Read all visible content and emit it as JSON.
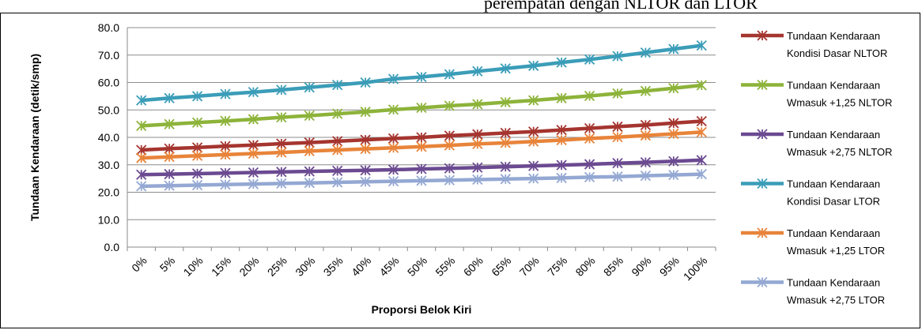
{
  "header_text": "perempatan dengan NLTOR dan LTOR",
  "chart_data": {
    "type": "line",
    "title": "",
    "xlabel": "Proporsi Belok Kiri",
    "ylabel": "Tundaan Kendaraan (detik/smp)",
    "ylim": [
      0,
      80
    ],
    "yticks": [
      "0.0",
      "10.0",
      "20.0",
      "30.0",
      "40.0",
      "50.0",
      "60.0",
      "70.0",
      "80.0"
    ],
    "grid": true,
    "legend_position": "right",
    "categories": [
      "0%",
      "5%",
      "10%",
      "15%",
      "20%",
      "25%",
      "30%",
      "35%",
      "40%",
      "45%",
      "50%",
      "55%",
      "60%",
      "65%",
      "70%",
      "75%",
      "80%",
      "85%",
      "90%",
      "95%",
      "100%"
    ],
    "series": [
      {
        "name_lines": [
          "Tundaan Kendaraan",
          "Kondisi Dasar NLTOR"
        ],
        "color": "#A5352F",
        "values": [
          35.4,
          35.9,
          36.3,
          36.8,
          37.2,
          37.7,
          38.1,
          38.6,
          39.1,
          39.6,
          40.0,
          40.6,
          41.1,
          41.6,
          42.1,
          42.7,
          43.3,
          43.9,
          44.5,
          45.2,
          45.9
        ]
      },
      {
        "name_lines": [
          "Tundaan Kendaraan",
          "Wmasuk +1,25 NLTOR"
        ],
        "color": "#8DB33A",
        "values": [
          44.2,
          44.8,
          45.4,
          46.0,
          46.6,
          47.3,
          47.9,
          48.6,
          49.3,
          50.1,
          50.8,
          51.5,
          52.1,
          52.8,
          53.5,
          54.3,
          55.1,
          56.0,
          56.9,
          57.9,
          59.0
        ]
      },
      {
        "name_lines": [
          "Tundaan Kendaraan",
          "Wmasuk +2,75 NLTOR"
        ],
        "color": "#6B4A91",
        "values": [
          26.4,
          26.6,
          26.8,
          27.0,
          27.2,
          27.4,
          27.6,
          27.8,
          28.0,
          28.2,
          28.5,
          28.7,
          29.0,
          29.3,
          29.6,
          29.9,
          30.2,
          30.6,
          30.9,
          31.3,
          31.7
        ]
      },
      {
        "name_lines": [
          "Tundaan Kendaraan",
          "Kondisi Dasar LTOR"
        ],
        "color": "#3B9DB8",
        "values": [
          53.5,
          54.3,
          55.0,
          55.8,
          56.5,
          57.3,
          58.2,
          59.1,
          60.0,
          61.3,
          62.0,
          63.0,
          64.1,
          65.1,
          66.1,
          67.3,
          68.4,
          69.6,
          70.9,
          72.2,
          73.5
        ]
      },
      {
        "name_lines": [
          "Tundaan Kendaraan",
          "Wmasuk +1,25 LTOR"
        ],
        "color": "#E8843A",
        "values": [
          32.5,
          32.9,
          33.3,
          33.7,
          34.1,
          34.5,
          35.0,
          35.4,
          35.8,
          36.2,
          36.6,
          37.1,
          37.6,
          38.0,
          38.5,
          39.0,
          39.6,
          40.1,
          40.7,
          41.3,
          41.9
        ]
      },
      {
        "name_lines": [
          "Tundaan Kendaraan",
          "Wmasuk +2,75 LTOR"
        ],
        "color": "#94A8D3",
        "values": [
          22.2,
          22.4,
          22.6,
          22.8,
          23.0,
          23.2,
          23.4,
          23.6,
          23.8,
          24.0,
          24.2,
          24.4,
          24.6,
          24.8,
          25.0,
          25.2,
          25.5,
          25.7,
          26.0,
          26.3,
          26.6
        ]
      }
    ]
  }
}
